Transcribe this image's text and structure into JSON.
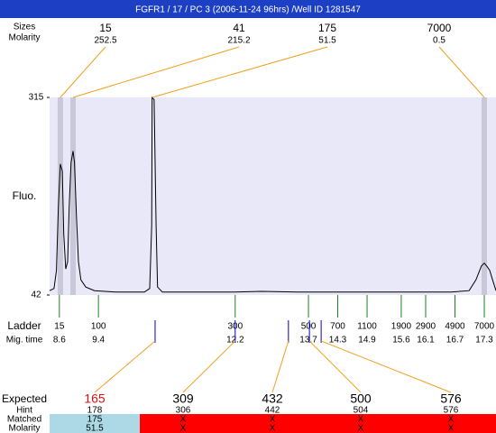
{
  "title": "FGFR1 / 17 / PC 3 (2006-11-24 96hrs) /Well ID 1281547",
  "top_labels": {
    "size": "Sizes",
    "molarity": "Molarity"
  },
  "peaks": [
    {
      "size": 15,
      "molarity": 252.5,
      "time": 8.62,
      "marker": true
    },
    {
      "size": 41,
      "molarity": 215.2,
      "time": 8.88,
      "marker": true
    },
    {
      "size": 175,
      "molarity": 51.5,
      "time": 10.5,
      "marker": false
    },
    {
      "size": 7000,
      "molarity": 0.5,
      "time": 17.3,
      "marker": true
    }
  ],
  "chart_data": {
    "type": "line",
    "y_label": "Fluo.",
    "color": "#000000",
    "ylim": [
      42,
      315
    ],
    "yticks": [
      315,
      42
    ],
    "xlim": [
      8.4,
      17.54
    ],
    "x": [
      8.4,
      8.49,
      8.54,
      8.58,
      8.62,
      8.66,
      8.69,
      8.73,
      8.77,
      8.8,
      8.84,
      8.88,
      8.91,
      8.95,
      8.99,
      9.04,
      9.14,
      9.32,
      9.78,
      10.34,
      10.45,
      10.49,
      10.5,
      10.54,
      10.58,
      10.61,
      10.71,
      12.18,
      12.74,
      13.48,
      14.77,
      16.62,
      16.99,
      17.13,
      17.24,
      17.3,
      17.36,
      17.41,
      17.47,
      17.54
    ],
    "values": [
      48,
      51,
      76,
      163,
      223,
      213,
      126,
      78,
      88,
      163,
      225,
      241,
      225,
      150,
      88,
      63,
      53,
      48,
      46,
      46,
      51,
      138,
      315,
      312,
      138,
      53,
      46,
      46,
      47,
      46,
      46,
      46,
      48,
      63,
      82,
      86,
      81,
      76,
      63,
      48
    ]
  },
  "ladder": {
    "label": "Ladder",
    "time_label": "Mig. time",
    "sizes": [
      15,
      100,
      300,
      500,
      700,
      1100,
      1900,
      2900,
      4900,
      7000
    ],
    "times": [
      8.6,
      9.4,
      12.2,
      13.7,
      14.3,
      14.9,
      15.6,
      16.1,
      16.7,
      17.3
    ]
  },
  "expected": {
    "labels": [
      "Expected",
      "Hint",
      "Matched",
      "Molarity"
    ],
    "columns": [
      {
        "expected": 165,
        "hint": 178,
        "matched": 175,
        "molarity": 51.5,
        "time": 10.56
      },
      {
        "expected": 309,
        "hint": 306,
        "matched": "X",
        "molarity": "X",
        "time": 12.2
      },
      {
        "expected": 432,
        "hint": 442,
        "matched": "X",
        "molarity": "X",
        "time": 13.29
      },
      {
        "expected": 500,
        "hint": 504,
        "matched": "X",
        "molarity": "X",
        "time": 13.72
      },
      {
        "expected": 576,
        "hint": 576,
        "matched": "X",
        "molarity": "X",
        "time": 13.96
      }
    ]
  }
}
